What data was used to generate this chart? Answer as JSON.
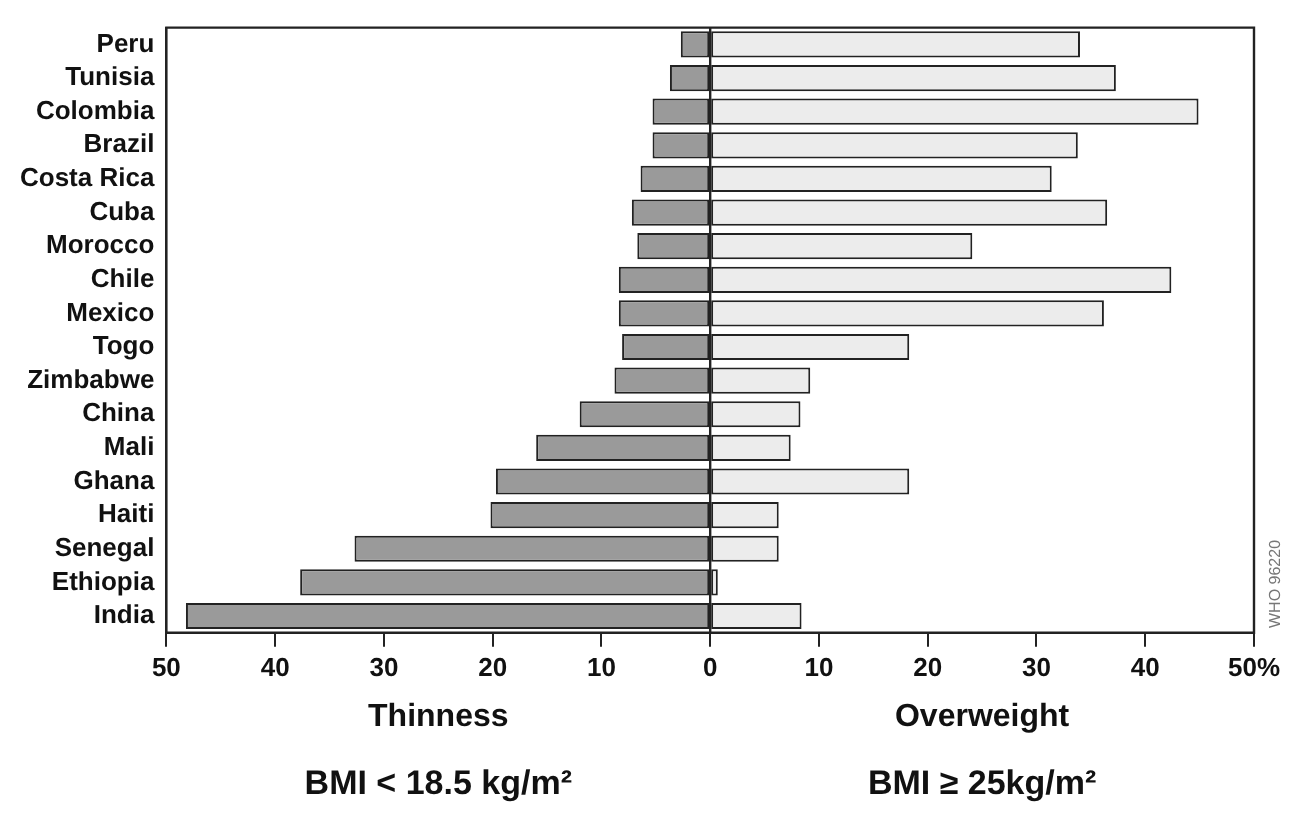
{
  "chart_data": {
    "type": "bar",
    "orientation": "horizontal",
    "stacked": true,
    "categories": [
      "Peru",
      "Tunisia",
      "Colombia",
      "Brazil",
      "Costa Rica",
      "Cuba",
      "Morocco",
      "Chile",
      "Mexico",
      "Togo",
      "Zimbabwe",
      "China",
      "Mali",
      "Ghana",
      "Haiti",
      "Senegal",
      "Ethiopia",
      "India"
    ],
    "series": [
      {
        "color": "#9a9a9a",
        "values": [
          -2.7,
          -3.7,
          -5.3,
          -5.3,
          -6.4,
          -7.2,
          -6.7,
          -8.4,
          -8.4,
          -8.1,
          -8.8,
          -12,
          -16,
          -19.7,
          -20.2,
          -32.7,
          -37.7,
          -48.2
        ]
      },
      {
        "color": "#ececec",
        "values": [
          34,
          37.3,
          44.9,
          33.8,
          31.4,
          36.5,
          24.1,
          42.4,
          36.2,
          18.3,
          9.2,
          8.3,
          7.4,
          18.3,
          6.3,
          6.3,
          0.7,
          8.4
        ]
      }
    ],
    "xlim": [
      -50,
      50
    ],
    "xticks": [
      {
        "value": -50,
        "label": "50"
      },
      {
        "value": -40,
        "label": "40"
      },
      {
        "value": -30,
        "label": "30"
      },
      {
        "value": -20,
        "label": "20"
      },
      {
        "value": -10,
        "label": "10"
      },
      0,
      10,
      20,
      30,
      40,
      {
        "value": 50,
        "label": "50%"
      }
    ],
    "grid": false,
    "legend": false,
    "ref_lines": [
      {
        "axis": "x",
        "value": 0,
        "color": "#222222"
      }
    ],
    "annotations": [
      "Thinness",
      "Overweight",
      "BMI < 18.5 kg/m²",
      "BMI ≥ 25kg/m²",
      "WHO 96220"
    ]
  }
}
